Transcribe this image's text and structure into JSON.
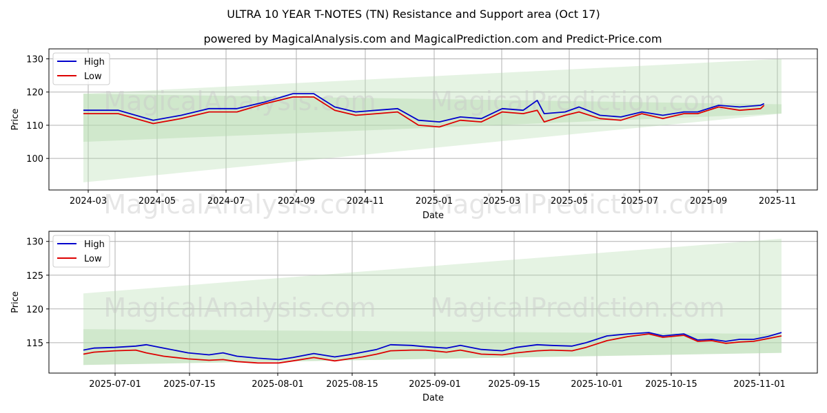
{
  "chart_data": [
    {
      "type": "line",
      "title": "ULTRA 10 YEAR T-NOTES (TN) Resistance and Support area (Oct 17)",
      "subtitle": "powered by MagicalAnalysis.com and MagicalPrediction.com and Predict-Price.com",
      "xlabel": "Date",
      "ylabel": "Price",
      "ylim": [
        90.5,
        133
      ],
      "x_ticks": [
        "2024-03",
        "2024-05",
        "2024-07",
        "2024-09",
        "2024-11",
        "2025-01",
        "2025-03",
        "2025-05",
        "2025-07",
        "2025-09",
        "2025-11"
      ],
      "y_ticks": [
        "100",
        "110",
        "120",
        "130"
      ],
      "legend": [
        "High",
        "Low"
      ],
      "legend_position": "top-left",
      "watermark": [
        "MagicalAnalysis.com",
        "MagicalPrediction.com"
      ],
      "colors": {
        "high": "#0000cc",
        "low": "#dd0000",
        "band": "#b5dcb0"
      },
      "bands": [
        {
          "name": "resistance-support-wide",
          "x": [
            0,
            1
          ],
          "upper": [
            119.5,
            130.0
          ],
          "lower": [
            92.8,
            113.5
          ]
        },
        {
          "name": "resistance-support-narrow",
          "x": [
            0,
            1
          ],
          "upper": [
            119.5,
            116.3
          ],
          "lower": [
            105.0,
            113.5
          ]
        }
      ],
      "series": [
        {
          "name": "High",
          "x": [
            0.0,
            0.05,
            0.1,
            0.14,
            0.18,
            0.22,
            0.26,
            0.3,
            0.33,
            0.36,
            0.39,
            0.42,
            0.45,
            0.48,
            0.51,
            0.54,
            0.57,
            0.6,
            0.63,
            0.65,
            0.66,
            0.69,
            0.71,
            0.74,
            0.77,
            0.8,
            0.83,
            0.86,
            0.88,
            0.91,
            0.94,
            0.97,
            0.975
          ],
          "values": [
            114.5,
            114.5,
            111.5,
            113.0,
            115.0,
            115.0,
            117.0,
            119.5,
            119.5,
            115.5,
            114.0,
            114.5,
            115.0,
            111.5,
            111.0,
            112.5,
            112.0,
            115.0,
            114.5,
            117.5,
            113.5,
            114.0,
            115.5,
            113.0,
            112.5,
            114.0,
            113.0,
            114.0,
            114.0,
            116.0,
            115.5,
            116.0,
            116.5
          ]
        },
        {
          "name": "Low",
          "x": [
            0.0,
            0.05,
            0.1,
            0.14,
            0.18,
            0.22,
            0.26,
            0.3,
            0.33,
            0.36,
            0.39,
            0.42,
            0.45,
            0.48,
            0.51,
            0.54,
            0.57,
            0.6,
            0.63,
            0.65,
            0.66,
            0.69,
            0.71,
            0.74,
            0.77,
            0.8,
            0.83,
            0.86,
            0.88,
            0.91,
            0.94,
            0.97,
            0.975
          ],
          "values": [
            113.5,
            113.5,
            110.5,
            112.0,
            114.0,
            114.0,
            116.5,
            118.5,
            118.5,
            114.5,
            113.0,
            113.5,
            114.0,
            110.0,
            109.5,
            111.5,
            111.0,
            114.0,
            113.5,
            114.5,
            111.0,
            113.0,
            114.0,
            112.0,
            111.5,
            113.5,
            112.0,
            113.5,
            113.5,
            115.5,
            114.5,
            115.0,
            116.0
          ]
        }
      ]
    },
    {
      "type": "line",
      "xlabel": "Date",
      "ylabel": "Price",
      "ylim": [
        110.5,
        131.5
      ],
      "x_ticks": [
        "2025-07-01",
        "2025-07-15",
        "2025-08-01",
        "2025-08-15",
        "2025-09-01",
        "2025-09-15",
        "2025-10-01",
        "2025-10-15",
        "2025-11-01"
      ],
      "y_ticks": [
        "115",
        "120",
        "125",
        "130"
      ],
      "legend": [
        "High",
        "Low"
      ],
      "legend_position": "top-left",
      "watermark": [
        "MagicalAnalysis.com",
        "MagicalPrediction.com"
      ],
      "colors": {
        "high": "#0000cc",
        "low": "#dd0000",
        "band": "#b5dcb0"
      },
      "bands": [
        {
          "name": "resistance-support-wide",
          "x": [
            0,
            1
          ],
          "upper": [
            122.3,
            130.4
          ],
          "lower": [
            111.7,
            113.5
          ]
        },
        {
          "name": "resistance-support-narrow",
          "x": [
            0,
            1
          ],
          "upper": [
            117.0,
            116.3
          ],
          "lower": [
            111.7,
            113.5
          ]
        }
      ],
      "series": [
        {
          "name": "High",
          "x": [
            0.0,
            0.015,
            0.045,
            0.075,
            0.09,
            0.115,
            0.15,
            0.18,
            0.2,
            0.22,
            0.25,
            0.28,
            0.3,
            0.33,
            0.36,
            0.38,
            0.4,
            0.42,
            0.44,
            0.47,
            0.49,
            0.52,
            0.54,
            0.57,
            0.6,
            0.62,
            0.65,
            0.67,
            0.7,
            0.72,
            0.75,
            0.78,
            0.81,
            0.83,
            0.86,
            0.88,
            0.9,
            0.92,
            0.94,
            0.96,
            0.98,
            1.0
          ],
          "values": [
            113.9,
            114.2,
            114.3,
            114.5,
            114.7,
            114.2,
            113.5,
            113.2,
            113.5,
            113.0,
            112.7,
            112.5,
            112.8,
            113.4,
            112.9,
            113.2,
            113.6,
            114.0,
            114.7,
            114.6,
            114.4,
            114.2,
            114.6,
            114.0,
            113.8,
            114.3,
            114.7,
            114.6,
            114.5,
            115.0,
            116.0,
            116.3,
            116.5,
            116.0,
            116.3,
            115.4,
            115.5,
            115.2,
            115.5,
            115.5,
            115.9,
            116.5
          ]
        },
        {
          "name": "Low",
          "x": [
            0.0,
            0.015,
            0.045,
            0.075,
            0.09,
            0.115,
            0.15,
            0.18,
            0.2,
            0.22,
            0.25,
            0.28,
            0.3,
            0.33,
            0.36,
            0.38,
            0.4,
            0.42,
            0.44,
            0.47,
            0.49,
            0.52,
            0.54,
            0.57,
            0.6,
            0.62,
            0.65,
            0.67,
            0.7,
            0.72,
            0.75,
            0.78,
            0.81,
            0.83,
            0.86,
            0.88,
            0.9,
            0.92,
            0.94,
            0.96,
            0.98,
            1.0
          ],
          "values": [
            113.3,
            113.6,
            113.8,
            113.9,
            113.5,
            113.0,
            112.6,
            112.4,
            112.5,
            112.2,
            112.0,
            112.0,
            112.3,
            112.8,
            112.3,
            112.6,
            112.9,
            113.3,
            113.8,
            113.9,
            113.9,
            113.6,
            113.9,
            113.3,
            113.2,
            113.5,
            113.8,
            113.9,
            113.8,
            114.3,
            115.3,
            115.9,
            116.3,
            115.8,
            116.1,
            115.2,
            115.3,
            114.9,
            115.1,
            115.2,
            115.6,
            116.0
          ]
        }
      ]
    }
  ]
}
